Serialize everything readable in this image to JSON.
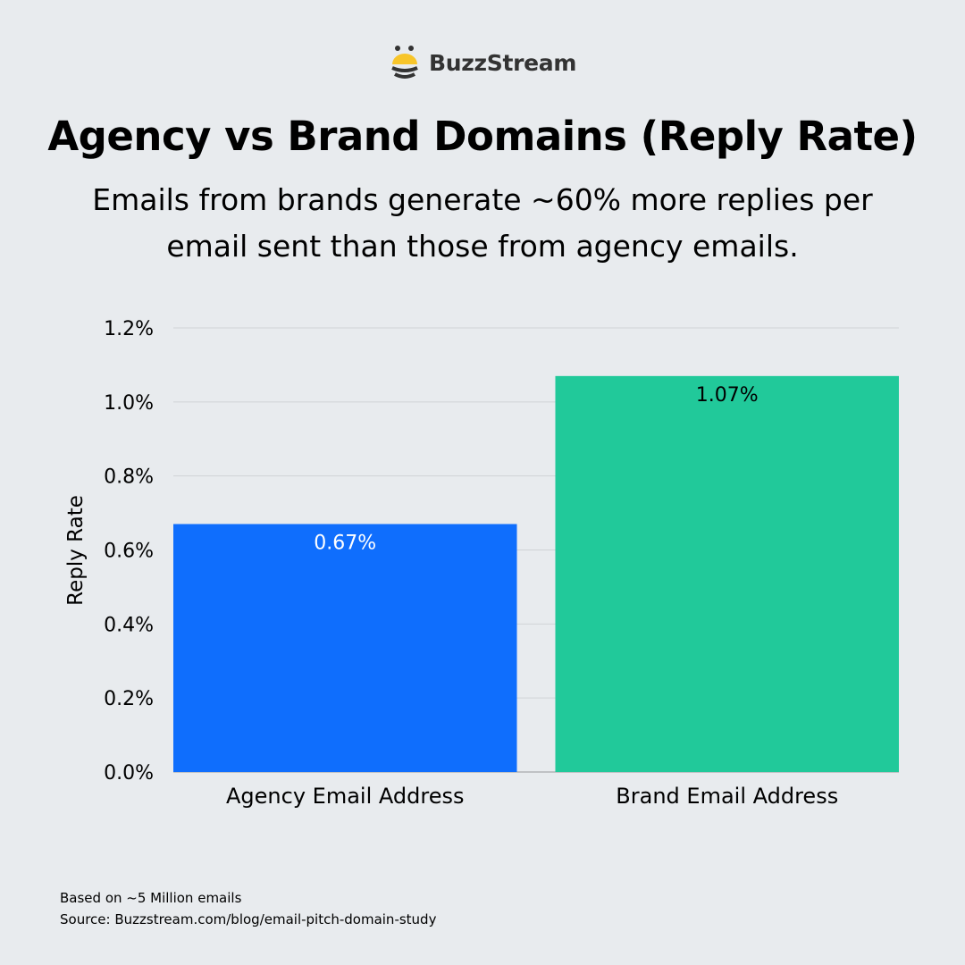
{
  "logo": {
    "text": "BuzzStream"
  },
  "header": {
    "title": "Agency vs Brand Domains (Reply Rate)",
    "subtitle": "Emails from brands generate ~60% more replies per email sent than those from agency emails."
  },
  "chart_data": {
    "type": "bar",
    "title": "Agency vs Brand Domains (Reply Rate)",
    "ylabel": "Reply Rate",
    "xlabel": "",
    "categories": [
      "Agency Email Address",
      "Brand Email Address"
    ],
    "values": [
      0.67,
      1.07
    ],
    "data_labels": [
      "0.67%",
      "1.07%"
    ],
    "colors": [
      "#0f6efd",
      "#21c99a"
    ],
    "label_colors": [
      "#ffffff",
      "#000000"
    ],
    "ylim": [
      0,
      1.2
    ],
    "yticks": [
      0,
      0.2,
      0.4,
      0.6,
      0.8,
      1.0,
      1.2
    ],
    "ytick_labels": [
      "0.0%",
      "0.2%",
      "0.4%",
      "0.6%",
      "0.8%",
      "1.0%",
      "1.2%"
    ],
    "grid": true,
    "legend": "none"
  },
  "footer": {
    "note": "Based on ~5 Million emails",
    "source": "Source: Buzzstream.com/blog/email-pitch-domain-study"
  }
}
